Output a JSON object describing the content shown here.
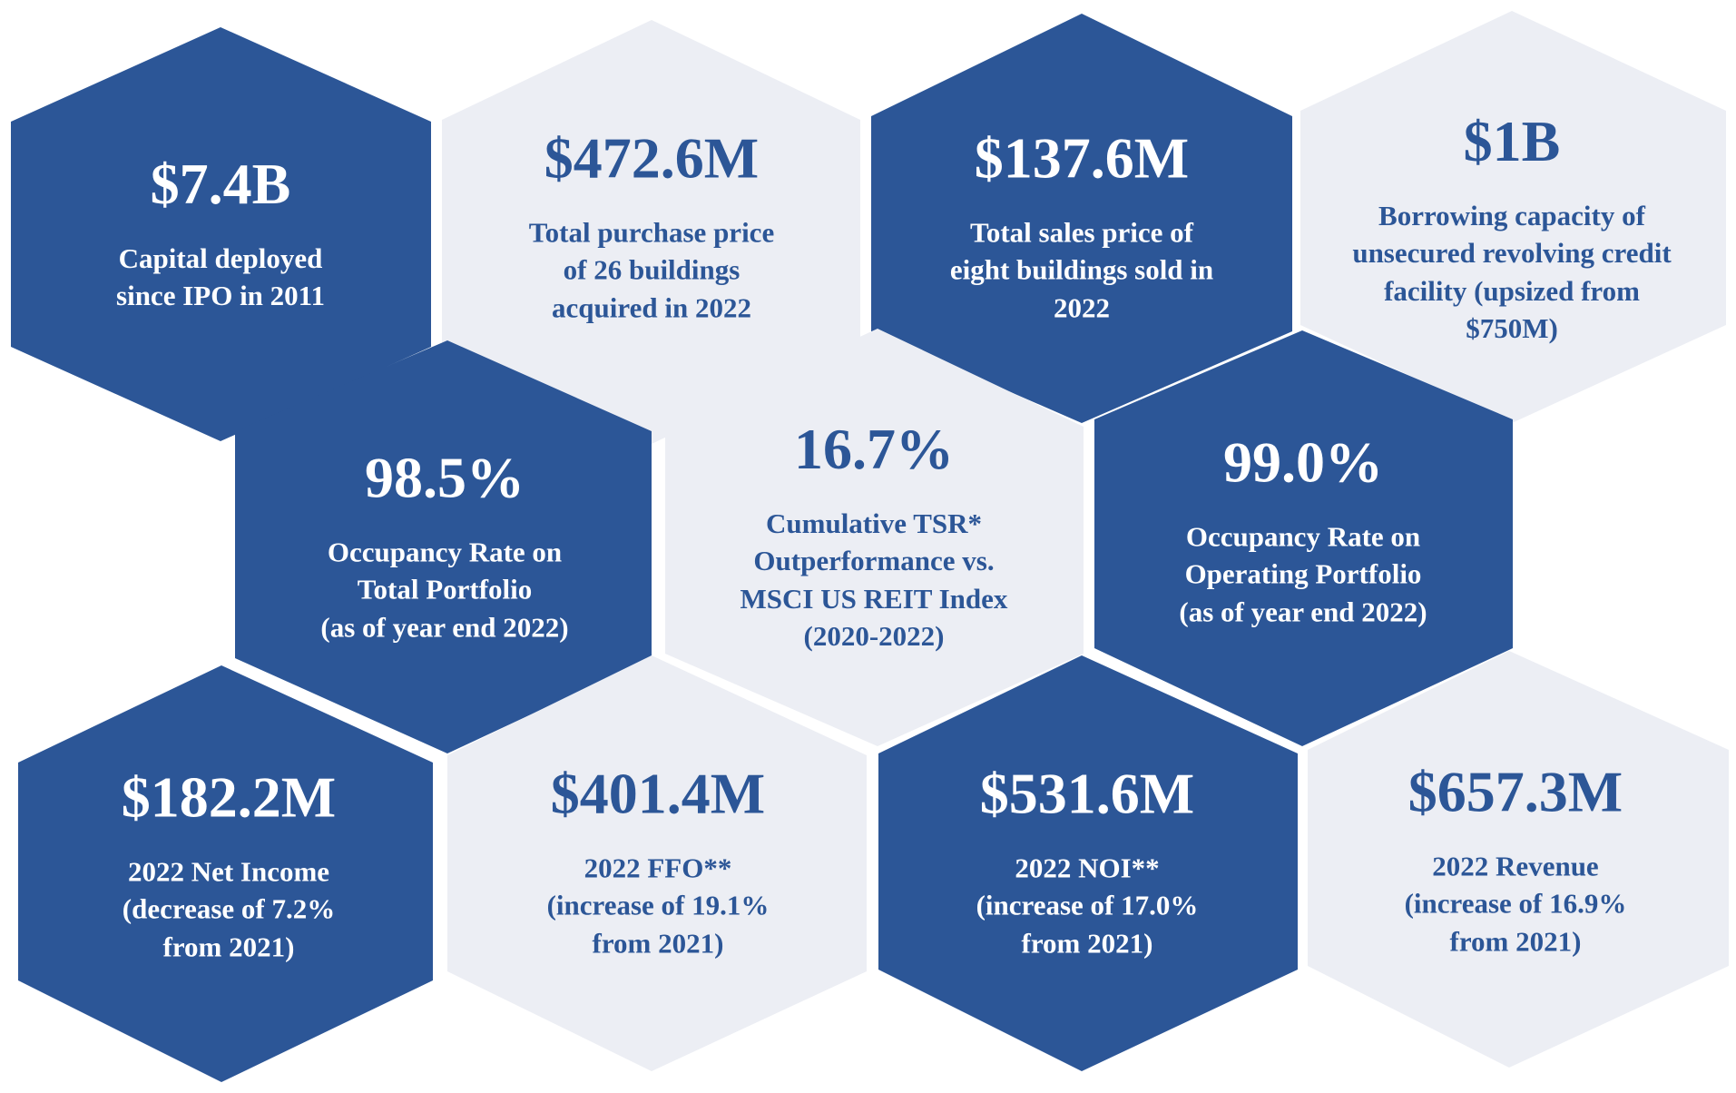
{
  "colors": {
    "dark": "#2c5697",
    "light": "#eceef4",
    "text_on_light": "#2c5697",
    "text_on_dark": "#ffffff"
  },
  "tiles": [
    {
      "id": "capital-deployed",
      "value": "$7.4B",
      "label": "Capital deployed\nsince IPO in 2011",
      "theme": "dark"
    },
    {
      "id": "purchase-price",
      "value": "$472.6M",
      "label": "Total purchase price\nof 26 buildings\nacquired in 2022",
      "theme": "light"
    },
    {
      "id": "sales-price",
      "value": "$137.6M",
      "label": "Total sales price of\neight buildings sold in\n2022",
      "theme": "dark"
    },
    {
      "id": "borrowing-capacity",
      "value": "$1B",
      "label": "Borrowing capacity of\nunsecured revolving credit\nfacility (upsized from\n$750M)",
      "theme": "light"
    },
    {
      "id": "occupancy-total",
      "value": "98.5%",
      "label": "Occupancy Rate on\nTotal Portfolio\n(as of year end 2022)",
      "theme": "dark"
    },
    {
      "id": "cumulative-tsr",
      "value": "16.7%",
      "label": "Cumulative TSR*\nOutperformance vs.\nMSCI US REIT Index\n(2020-2022)",
      "theme": "light"
    },
    {
      "id": "occupancy-operating",
      "value": "99.0%",
      "label": "Occupancy Rate on\nOperating Portfolio\n(as of year end 2022)",
      "theme": "dark"
    },
    {
      "id": "net-income",
      "value": "$182.2M",
      "label": "2022 Net Income\n(decrease of 7.2%\nfrom 2021)",
      "theme": "dark"
    },
    {
      "id": "ffo",
      "value": "$401.4M",
      "label": "2022 FFO**\n(increase of 19.1%\nfrom 2021)",
      "theme": "light"
    },
    {
      "id": "noi",
      "value": "$531.6M",
      "label": "2022 NOI**\n(increase of 17.0%\nfrom 2021)",
      "theme": "dark"
    },
    {
      "id": "revenue",
      "value": "$657.3M",
      "label": "2022 Revenue\n(increase of 16.9%\nfrom 2021)",
      "theme": "light"
    }
  ]
}
